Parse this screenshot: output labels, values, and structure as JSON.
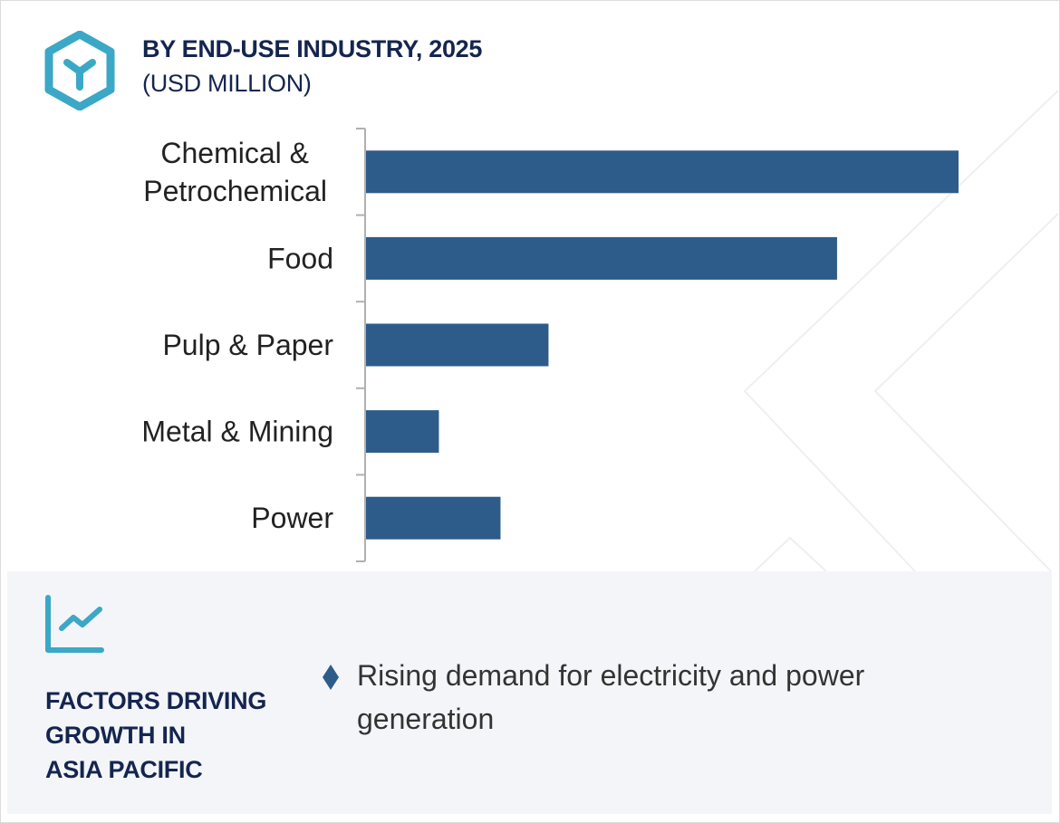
{
  "header": {
    "title": "BY END-USE INDUSTRY, 2025",
    "subtitle": "(USD MILLION)",
    "logo_icon": "hexagon-y-logo-icon"
  },
  "colors": {
    "bar": "#2d5c8a",
    "title": "#14254f",
    "accent": "#3aa8c6",
    "panel_bg": "#f4f5f9",
    "axis": "#b0b0b0"
  },
  "chart_data": {
    "type": "bar",
    "orientation": "horizontal",
    "title": "BY END-USE INDUSTRY, 2025",
    "subtitle": "(USD MILLION)",
    "categories": [
      "Chemical & Petrochemical",
      "Food",
      "Pulp & Paper",
      "Metal & Mining",
      "Power"
    ],
    "category_lines": [
      [
        "Chemical &",
        "Petrochemical"
      ],
      [
        "Food"
      ],
      [
        "Pulp & Paper"
      ],
      [
        "Metal & Mining"
      ],
      [
        "Power"
      ]
    ],
    "values": [
      100,
      79.5,
      30.8,
      12.3,
      22.7
    ],
    "value_note": "relative scale (no axis values shown); largest = 100",
    "xlabel": "",
    "ylabel": "",
    "xlim": [
      0,
      100
    ],
    "grid": false,
    "legend": "none"
  },
  "factors_panel": {
    "icon": "trend-line-chart-icon",
    "heading_lines": [
      "FACTORS DRIVING",
      "GROWTH IN",
      "ASIA PACIFIC"
    ],
    "bullets": [
      {
        "icon": "diamond-bullet-icon",
        "text": "Rising demand for electricity and power generation"
      }
    ]
  }
}
